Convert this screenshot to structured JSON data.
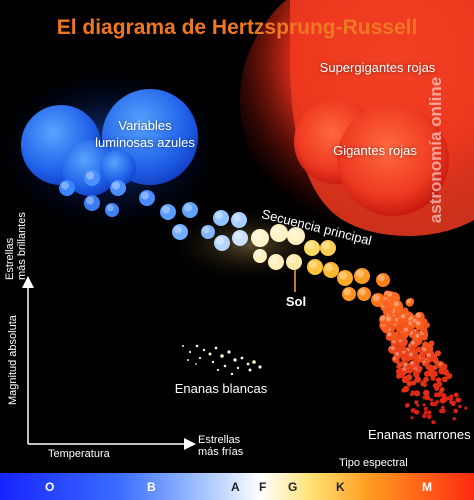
{
  "title": "El diagrama de Hertzsprung-Russell",
  "watermark": "astronomía online",
  "regions": {
    "blue_variables": "Variables luminosas azules",
    "red_supergiants": "Supergigantes rojas",
    "red_giants": "Gigantes rojas",
    "main_sequence": "Secuencia principal",
    "sun": "Sol",
    "white_dwarfs": "Enanas blancas",
    "brown_dwarfs": "Enanas marrones"
  },
  "axes": {
    "y_label": "Magnitud absoluta",
    "y_hint_1": "Estrellas",
    "y_hint_2": "más brillantes",
    "x_label": "Temperatura",
    "x_hint_1": "Estrellas",
    "x_hint_2": "más frías"
  },
  "spectral": {
    "title": "Tipo espectral",
    "classes": [
      "O",
      "B",
      "A",
      "F",
      "G",
      "K",
      "M"
    ]
  },
  "colors": {
    "title": "#f07722",
    "blue_star": "#2f78ff",
    "white_star": "#fff6d0",
    "yellow_star": "#ffc430",
    "red_star": "#ff3a1e",
    "spectral_o": "#1a2cff",
    "spectral_m": "#ff2a10"
  }
}
